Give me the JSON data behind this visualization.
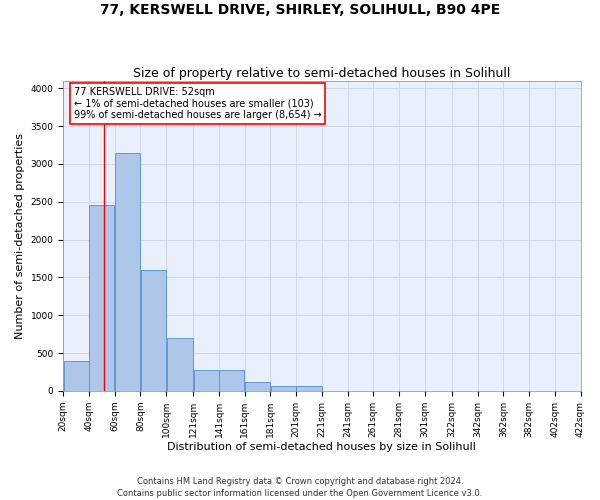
{
  "title": "77, KERSWELL DRIVE, SHIRLEY, SOLIHULL, B90 4PE",
  "subtitle": "Size of property relative to semi-detached houses in Solihull",
  "xlabel": "Distribution of semi-detached houses by size in Solihull",
  "ylabel": "Number of semi-detached properties",
  "footer1": "Contains HM Land Registry data © Crown copyright and database right 2024.",
  "footer2": "Contains public sector information licensed under the Open Government Licence v3.0.",
  "annotation_line1": "77 KERSWELL DRIVE: 52sqm",
  "annotation_line2": "← 1% of semi-detached houses are smaller (103)",
  "annotation_line3": "99% of semi-detached houses are larger (8,654) →",
  "bar_left_edges": [
    20,
    40,
    60,
    80,
    100,
    121,
    141,
    161,
    181,
    201,
    221,
    241,
    261,
    281,
    301,
    322,
    342,
    362,
    382,
    402
  ],
  "bar_widths": [
    20,
    20,
    20,
    20,
    21,
    20,
    20,
    20,
    20,
    20,
    20,
    20,
    20,
    20,
    21,
    20,
    20,
    20,
    20,
    20
  ],
  "bar_heights": [
    400,
    2450,
    3150,
    1600,
    700,
    270,
    270,
    120,
    70,
    60,
    0,
    0,
    0,
    0,
    0,
    0,
    0,
    0,
    0,
    0
  ],
  "bar_color": "#aec6e8",
  "bar_edge_color": "#5b9bd5",
  "grid_color": "#d0d8e8",
  "red_line_x": 52,
  "ylim": [
    0,
    4100
  ],
  "yticks": [
    0,
    500,
    1000,
    1500,
    2000,
    2500,
    3000,
    3500,
    4000
  ],
  "x_tick_labels": [
    "20sqm",
    "40sqm",
    "60sqm",
    "80sqm",
    "100sqm",
    "121sqm",
    "141sqm",
    "161sqm",
    "181sqm",
    "201sqm",
    "221sqm",
    "241sqm",
    "261sqm",
    "281sqm",
    "301sqm",
    "322sqm",
    "342sqm",
    "362sqm",
    "382sqm",
    "402sqm",
    "422sqm"
  ],
  "x_tick_positions": [
    20,
    40,
    60,
    80,
    100,
    121,
    141,
    161,
    181,
    201,
    221,
    241,
    261,
    281,
    301,
    322,
    342,
    362,
    382,
    402,
    422
  ],
  "background_color": "#eaf0fb",
  "title_fontsize": 10,
  "subtitle_fontsize": 9,
  "tick_fontsize": 6.5,
  "label_fontsize": 8,
  "footer_fontsize": 6
}
